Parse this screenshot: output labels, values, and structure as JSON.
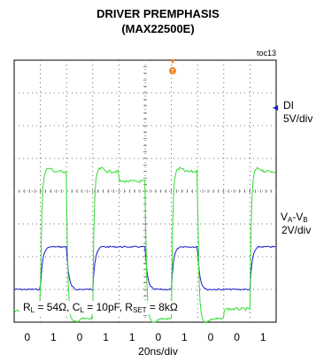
{
  "chart_data": {
    "type": "line",
    "title": "DRIVER PREMPHASIS",
    "subtitle": "(MAX22500E)",
    "corner_tag": "toc13",
    "xlabel": "20ns/div",
    "bit_sequence": [
      "0",
      "1",
      "0",
      "1",
      "1",
      "0",
      "1",
      "0",
      "0",
      "1"
    ],
    "x_divisions": 10,
    "y_divisions": 8,
    "grid": true,
    "series": [
      {
        "name": "DI",
        "scale": "5V/div",
        "color": "#1a1acc",
        "bits": [
          0,
          1,
          0,
          1,
          1,
          0,
          1,
          0,
          0,
          1
        ],
        "high_div": 2.3,
        "low_div": 1.0
      },
      {
        "name": "VA-VB",
        "label_main": "V",
        "label_sub_a": "A",
        "label_sep": "-V",
        "label_sub_b": "B",
        "scale": "2V/div",
        "color": "#33dd33",
        "bits": [
          0,
          1,
          0,
          1,
          1,
          0,
          1,
          0,
          0,
          1
        ],
        "high_div": 4.7,
        "low_div": 0.0,
        "preemph_hold_div": 0.4
      }
    ],
    "annotation": {
      "rl_pre": "R",
      "rl_sub": "L",
      "rl_post": " = 54Ω, ",
      "cl_pre": "C",
      "cl_sub": "L",
      "cl_post": " = 10pF, ",
      "rs_pre": "R",
      "rs_sub": "SET",
      "rs_post": " = 8kΩ"
    },
    "trigger_marker": "T",
    "colors": {
      "trigger": "#f08020",
      "grid": "#444444"
    }
  }
}
